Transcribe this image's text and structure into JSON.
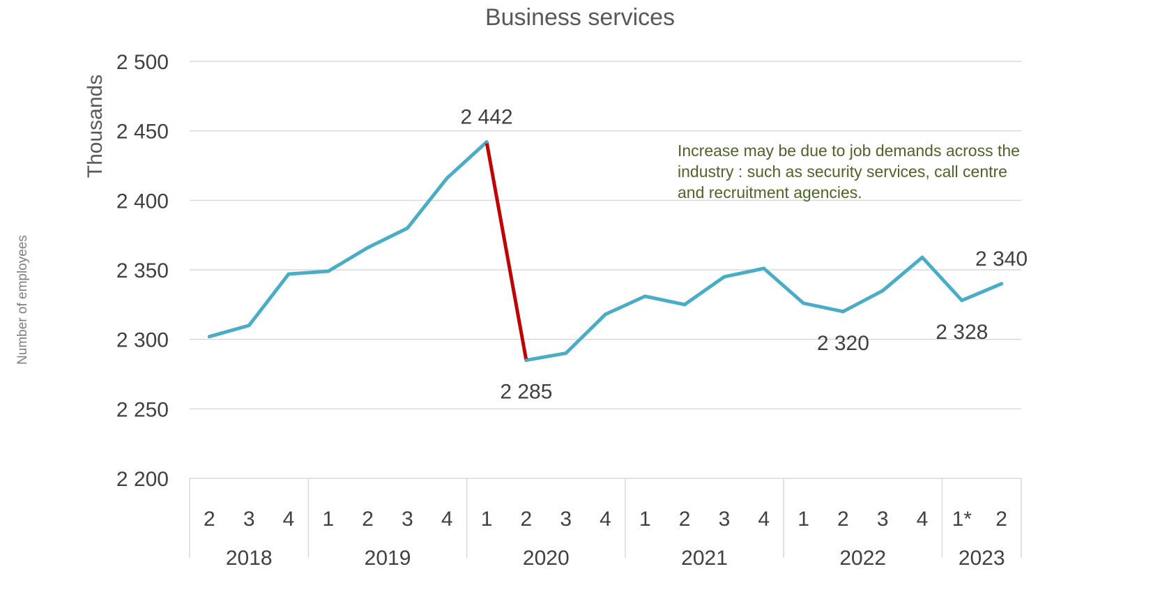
{
  "chart_data": {
    "type": "line",
    "title": "Business services",
    "ylabel": "Thousands",
    "outer_ylabel": "Number of employees",
    "ylim": [
      2200,
      2500
    ],
    "yticks": [
      2200,
      2250,
      2300,
      2350,
      2400,
      2450,
      2500
    ],
    "ytick_labels": [
      "2 200",
      "2 250",
      "2 300",
      "2 350",
      "2 400",
      "2 450",
      "2 500"
    ],
    "grid": true,
    "quarters": [
      "2",
      "3",
      "4",
      "1",
      "2",
      "3",
      "4",
      "1",
      "2",
      "3",
      "4",
      "1",
      "2",
      "3",
      "4",
      "1",
      "2",
      "3",
      "4",
      "1*",
      "2"
    ],
    "years": [
      {
        "label": "2018",
        "count": 3
      },
      {
        "label": "2019",
        "count": 4
      },
      {
        "label": "2020",
        "count": 4
      },
      {
        "label": "2021",
        "count": 4
      },
      {
        "label": "2022",
        "count": 4
      },
      {
        "label": "2023",
        "count": 2
      }
    ],
    "series": [
      {
        "values": [
          2302,
          2310,
          2347,
          2349,
          2366,
          2380,
          2416,
          2442,
          2285,
          2290,
          2318,
          2331,
          2325,
          2345,
          2351,
          2326,
          2320,
          2335,
          2359,
          2328,
          2340
        ],
        "color": "#4bacc6",
        "highlight_segment": {
          "from_index": 7,
          "to_index": 8,
          "color": "#c00000"
        }
      }
    ],
    "data_labels": [
      {
        "index": 7,
        "text": "2 442",
        "position": "above"
      },
      {
        "index": 8,
        "text": "2 285",
        "position": "below"
      },
      {
        "index": 16,
        "text": "2 320",
        "position": "below"
      },
      {
        "index": 19,
        "text": "2 328",
        "position": "below"
      },
      {
        "index": 20,
        "text": "2 340",
        "position": "above"
      }
    ],
    "annotation": {
      "lines": [
        "Increase may be due to job demands across the",
        "industry : such as security services, call centre",
        "and recruitment agencies."
      ],
      "color": "#4f6228"
    },
    "colors": {
      "grid": "#d9d9d9",
      "axis_text": "#404040"
    }
  }
}
